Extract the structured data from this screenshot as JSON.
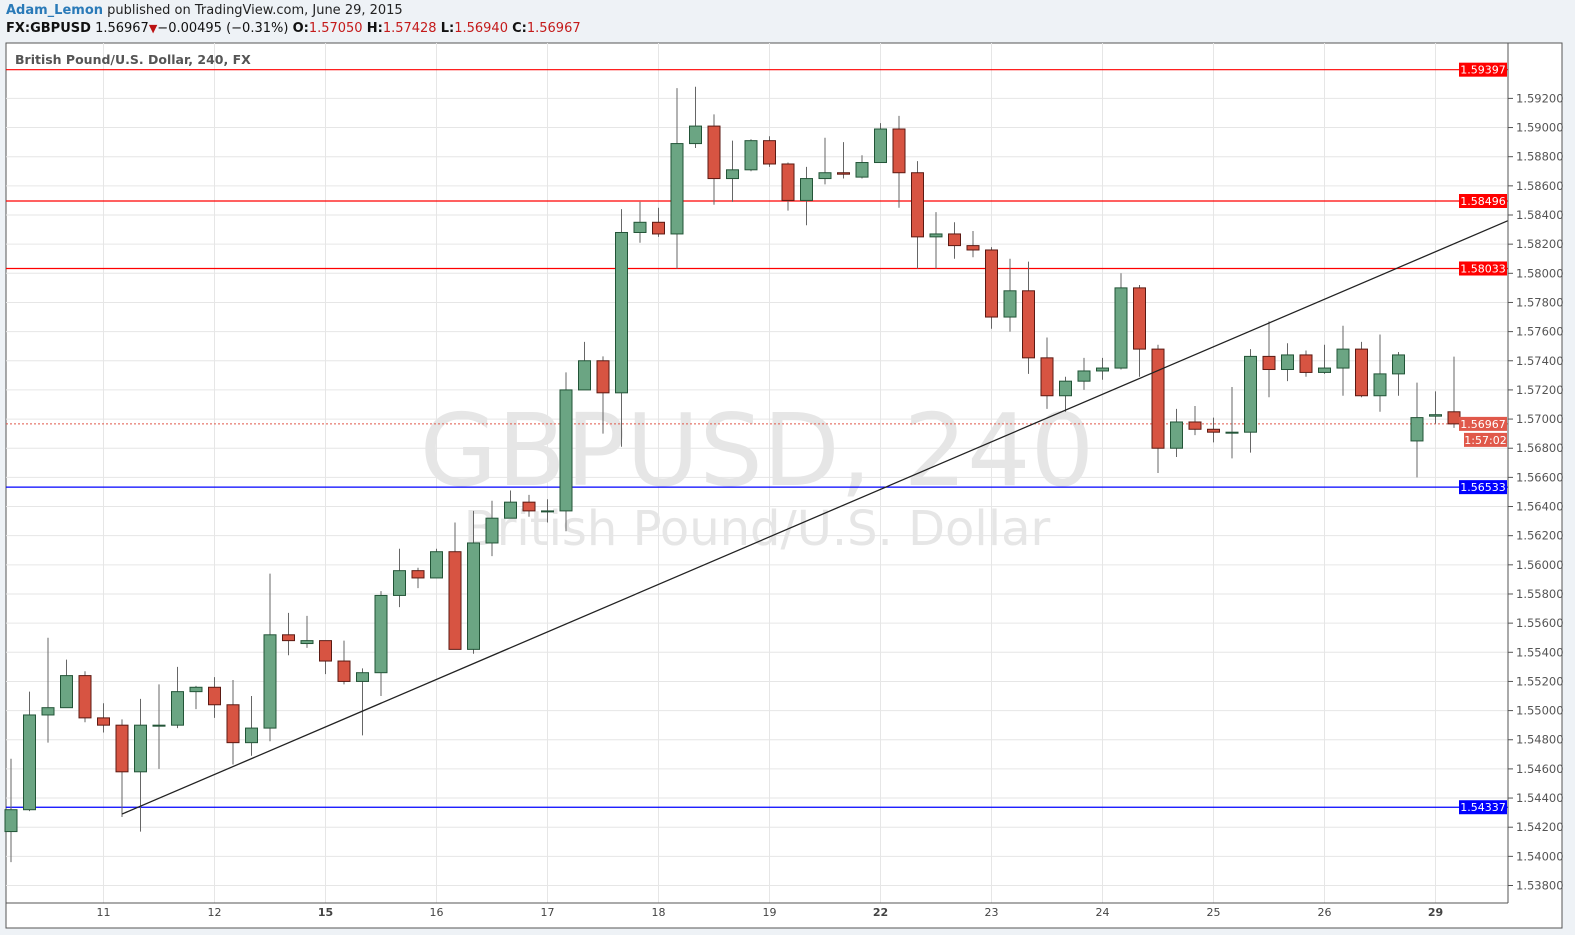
{
  "header": {
    "author": "Adam_Lemon",
    "published": "published on TradingView.com, June 29, 2015",
    "symbol": "FX:GBPUSD",
    "last": "1.56967",
    "change": "−0.00495 (−0.31%)",
    "direction_icon": "triangle-down-icon",
    "o_label": "O:",
    "o": "1.57050",
    "h_label": "H:",
    "h": "1.57428",
    "l_label": "L:",
    "l": "1.56940",
    "c_label": "C:",
    "c": "1.56967"
  },
  "chart_title": "British Pound/U.S. Dollar, 240, FX",
  "watermark": {
    "line1": "GBPUSD, 240",
    "line2": "British Pound/U.S. Dollar"
  },
  "colors": {
    "up_fill": "#6ba583",
    "up_border": "#225437",
    "down_fill": "#d75442",
    "down_border": "#5b1a13",
    "resistance": "#ff0000",
    "support": "#0000ff",
    "last_price": "#e0584a",
    "trendline": "#222222"
  },
  "chart_data": {
    "type": "candlestick",
    "ylim": [
      1.5368,
      1.5958
    ],
    "grid": true,
    "y_ticks": [
      "1.53800",
      "1.54000",
      "1.54200",
      "1.54400",
      "1.54600",
      "1.54800",
      "1.55000",
      "1.55200",
      "1.55400",
      "1.55600",
      "1.55800",
      "1.56000",
      "1.56200",
      "1.56400",
      "1.56600",
      "1.56800",
      "1.57000",
      "1.57200",
      "1.57400",
      "1.57600",
      "1.57800",
      "1.58000",
      "1.58200",
      "1.58400",
      "1.58600",
      "1.58800",
      "1.59000",
      "1.59200"
    ],
    "x_ticks": [
      {
        "bar": 5,
        "label": "11",
        "bold": false
      },
      {
        "bar": 11,
        "label": "12",
        "bold": false
      },
      {
        "bar": 17,
        "label": "15",
        "bold": true
      },
      {
        "bar": 23,
        "label": "16",
        "bold": false
      },
      {
        "bar": 29,
        "label": "17",
        "bold": false
      },
      {
        "bar": 35,
        "label": "18",
        "bold": false
      },
      {
        "bar": 41,
        "label": "19",
        "bold": false
      },
      {
        "bar": 47,
        "label": "22",
        "bold": true
      },
      {
        "bar": 53,
        "label": "23",
        "bold": false
      },
      {
        "bar": 59,
        "label": "24",
        "bold": false
      },
      {
        "bar": 65,
        "label": "25",
        "bold": false
      },
      {
        "bar": 71,
        "label": "26",
        "bold": false
      },
      {
        "bar": 77,
        "label": "29",
        "bold": true
      }
    ],
    "ohlc": [
      [
        1.5417,
        1.5467,
        1.5396,
        1.5432
      ],
      [
        1.5432,
        1.5513,
        1.5431,
        1.5497
      ],
      [
        1.5497,
        1.555,
        1.5478,
        1.5502
      ],
      [
        1.5502,
        1.5535,
        1.5502,
        1.5524
      ],
      [
        1.5524,
        1.5527,
        1.5492,
        1.5495
      ],
      [
        1.5495,
        1.5505,
        1.5485,
        1.549
      ],
      [
        1.549,
        1.5494,
        1.5427,
        1.5458
      ],
      [
        1.5458,
        1.5508,
        1.5417,
        1.549
      ],
      [
        1.549,
        1.5518,
        1.546,
        1.549
      ],
      [
        1.549,
        1.553,
        1.5488,
        1.5513
      ],
      [
        1.5513,
        1.5517,
        1.5501,
        1.5516
      ],
      [
        1.5516,
        1.5523,
        1.5495,
        1.5504
      ],
      [
        1.5504,
        1.5521,
        1.5463,
        1.5478
      ],
      [
        1.5478,
        1.551,
        1.5469,
        1.5488
      ],
      [
        1.5488,
        1.5594,
        1.5479,
        1.5552
      ],
      [
        1.5552,
        1.5567,
        1.5538,
        1.5548
      ],
      [
        1.5546,
        1.5565,
        1.5543,
        1.5548
      ],
      [
        1.5548,
        1.5548,
        1.5525,
        1.5534
      ],
      [
        1.5534,
        1.5548,
        1.5518,
        1.552
      ],
      [
        1.552,
        1.5529,
        1.5483,
        1.5526
      ],
      [
        1.5526,
        1.5582,
        1.551,
        1.5579
      ],
      [
        1.5579,
        1.5611,
        1.5571,
        1.5596
      ],
      [
        1.5596,
        1.5598,
        1.5584,
        1.5591
      ],
      [
        1.5591,
        1.5611,
        1.5591,
        1.5609
      ],
      [
        1.5609,
        1.5629,
        1.5542,
        1.5542
      ],
      [
        1.5542,
        1.5637,
        1.5539,
        1.5615
      ],
      [
        1.5615,
        1.5644,
        1.5606,
        1.5632
      ],
      [
        1.5632,
        1.5651,
        1.5632,
        1.5643
      ],
      [
        1.5643,
        1.5648,
        1.5633,
        1.5637
      ],
      [
        1.5637,
        1.5645,
        1.5629,
        1.5637
      ],
      [
        1.5637,
        1.5732,
        1.5623,
        1.572
      ],
      [
        1.572,
        1.5753,
        1.572,
        1.574
      ],
      [
        1.574,
        1.5743,
        1.569,
        1.5718
      ],
      [
        1.5718,
        1.5844,
        1.5681,
        1.5828
      ],
      [
        1.5828,
        1.5849,
        1.5821,
        1.5835
      ],
      [
        1.5835,
        1.5845,
        1.5825,
        1.5827
      ],
      [
        1.5827,
        1.5927,
        1.5803,
        1.5889
      ],
      [
        1.5889,
        1.5928,
        1.5886,
        1.5901
      ],
      [
        1.5901,
        1.5909,
        1.5847,
        1.5865
      ],
      [
        1.5865,
        1.5891,
        1.5849,
        1.5871
      ],
      [
        1.5871,
        1.5892,
        1.587,
        1.5891
      ],
      [
        1.5891,
        1.5894,
        1.5873,
        1.5875
      ],
      [
        1.5875,
        1.5876,
        1.5843,
        1.585
      ],
      [
        1.585,
        1.5873,
        1.5833,
        1.5865
      ],
      [
        1.5865,
        1.5893,
        1.5861,
        1.5869
      ],
      [
        1.5869,
        1.589,
        1.5865,
        1.5868
      ],
      [
        1.5866,
        1.5881,
        1.5865,
        1.5876
      ],
      [
        1.5876,
        1.5903,
        1.5876,
        1.5899
      ],
      [
        1.5899,
        1.5908,
        1.5845,
        1.5869
      ],
      [
        1.5869,
        1.5877,
        1.5803,
        1.5825
      ],
      [
        1.5825,
        1.5842,
        1.5803,
        1.5827
      ],
      [
        1.5827,
        1.5835,
        1.581,
        1.5819
      ],
      [
        1.5819,
        1.5829,
        1.5811,
        1.5816
      ],
      [
        1.5816,
        1.5818,
        1.5762,
        1.577
      ],
      [
        1.577,
        1.581,
        1.576,
        1.5788
      ],
      [
        1.5788,
        1.5808,
        1.5731,
        1.5742
      ],
      [
        1.5742,
        1.5756,
        1.5707,
        1.5716
      ],
      [
        1.5716,
        1.5729,
        1.5705,
        1.5726
      ],
      [
        1.5726,
        1.5742,
        1.572,
        1.5733
      ],
      [
        1.5733,
        1.5742,
        1.5727,
        1.5735
      ],
      [
        1.5735,
        1.58,
        1.5734,
        1.579
      ],
      [
        1.579,
        1.5792,
        1.5729,
        1.5748
      ],
      [
        1.5748,
        1.5751,
        1.5663,
        1.568
      ],
      [
        1.568,
        1.5707,
        1.5674,
        1.5698
      ],
      [
        1.5698,
        1.5709,
        1.5689,
        1.5693
      ],
      [
        1.5693,
        1.5701,
        1.5684,
        1.5691
      ],
      [
        1.5691,
        1.5722,
        1.5673,
        1.5691
      ],
      [
        1.5691,
        1.5748,
        1.5677,
        1.5743
      ],
      [
        1.5743,
        1.5767,
        1.5715,
        1.5734
      ],
      [
        1.5734,
        1.5752,
        1.5726,
        1.5744
      ],
      [
        1.5744,
        1.5747,
        1.5729,
        1.5732
      ],
      [
        1.5732,
        1.5751,
        1.5731,
        1.5735
      ],
      [
        1.5735,
        1.5764,
        1.5716,
        1.5748
      ],
      [
        1.5748,
        1.5753,
        1.5715,
        1.5716
      ],
      [
        1.5716,
        1.5758,
        1.5705,
        1.5731
      ],
      [
        1.5731,
        1.5746,
        1.5716,
        1.5744
      ],
      [
        1.5685,
        1.5725,
        1.566,
        1.5701
      ],
      [
        1.5702,
        1.5719,
        1.5697,
        1.5703
      ],
      [
        1.5705,
        1.57428,
        1.5694,
        1.56967
      ]
    ],
    "horizontal_lines": [
      {
        "price": 1.59397,
        "label": "1.59397",
        "kind": "resistance"
      },
      {
        "price": 1.58496,
        "label": "1.58496",
        "kind": "resistance"
      },
      {
        "price": 1.58033,
        "label": "1.58033",
        "kind": "resistance"
      },
      {
        "price": 1.56533,
        "label": "1.56533",
        "kind": "support"
      },
      {
        "price": 1.54337,
        "label": "1.54337",
        "kind": "support"
      }
    ],
    "trendline": {
      "start": {
        "bar": 6,
        "price": 1.5429
      },
      "end": {
        "bar": 80.9,
        "price": 1.5836
      }
    },
    "last_price": {
      "price": 1.56967,
      "label": "1.56967",
      "countdown": "1:57:02"
    }
  }
}
